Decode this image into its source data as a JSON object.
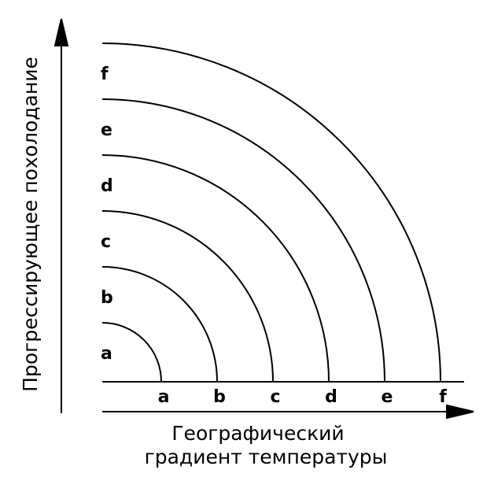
{
  "y_axis_label": "Прогрессирующее похолодание",
  "x_axis_label": [
    "Географический",
    "градиент температуры"
  ],
  "arcs": [
    {
      "left_label": "a",
      "bottom_label": "a"
    },
    {
      "left_label": "b",
      "bottom_label": "b"
    },
    {
      "left_label": "c",
      "bottom_label": "c"
    },
    {
      "left_label": "d",
      "bottom_label": "d"
    },
    {
      "left_label": "e",
      "bottom_label": "e"
    },
    {
      "left_label": "f",
      "bottom_label": "f"
    }
  ]
}
